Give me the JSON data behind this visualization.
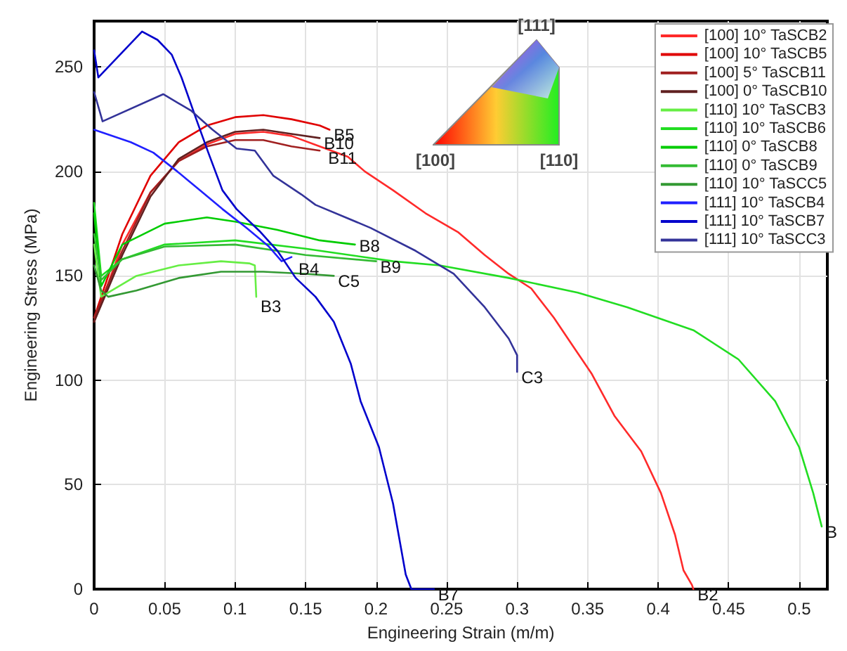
{
  "chart_data": {
    "type": "line",
    "xlabel": "Engineering Strain (m/m)",
    "ylabel": "Engineering Stress (MPa)",
    "xlim": [
      0,
      0.52
    ],
    "xticks": [
      0,
      0.05,
      0.1,
      0.15,
      0.2,
      0.25,
      0.3,
      0.35,
      0.4,
      0.45,
      0.5
    ],
    "ylim": [
      0,
      272
    ],
    "yticks": [
      0,
      50,
      100,
      150,
      200,
      250
    ],
    "grid": true,
    "legend": "top right",
    "marker": "none",
    "line_style": "solid",
    "series": [
      {
        "name": "[100] 10° TaSCB2",
        "color": "#ff2a2a",
        "x": [
          0,
          0.02,
          0.04,
          0.06,
          0.08,
          0.1,
          0.12,
          0.14,
          0.16,
          0.18,
          0.192,
          0.212,
          0.235,
          0.258,
          0.277,
          0.294,
          0.31,
          0.326,
          0.339,
          0.353,
          0.369,
          0.388,
          0.402,
          0.412,
          0.418,
          0.424,
          0.425
        ],
        "values": [
          128,
          165,
          190,
          205,
          213,
          218,
          219,
          217,
          212,
          207,
          200,
          191,
          180,
          171,
          160,
          151,
          144,
          130,
          117,
          103,
          83,
          66,
          46,
          26,
          9,
          2,
          0
        ]
      },
      {
        "name": "[100] 10° TaSCB5",
        "color": "#e00000",
        "x": [
          0,
          0.02,
          0.04,
          0.06,
          0.08,
          0.1,
          0.12,
          0.14,
          0.16,
          0.167
        ],
        "values": [
          130,
          170,
          198,
          214,
          222,
          226,
          227,
          225,
          222,
          220
        ]
      },
      {
        "name": "[100] 5° TaSCB11",
        "color": "#a02020",
        "x": [
          0,
          0.02,
          0.04,
          0.06,
          0.08,
          0.1,
          0.12,
          0.14,
          0.16
        ],
        "values": [
          130,
          162,
          190,
          205,
          212,
          215,
          215,
          212,
          210
        ]
      },
      {
        "name": "[100] 0° TaSCB10",
        "color": "#602020",
        "x": [
          0,
          0.02,
          0.04,
          0.06,
          0.08,
          0.1,
          0.12,
          0.14,
          0.16
        ],
        "values": [
          128,
          160,
          188,
          206,
          214,
          219,
          220,
          218,
          216
        ]
      },
      {
        "name": "[110] 10° TaSCB3",
        "color": "#66ee44",
        "x": [
          0,
          0.005,
          0.03,
          0.06,
          0.09,
          0.11,
          0.114,
          0.115
        ],
        "values": [
          165,
          140,
          150,
          155,
          157,
          156,
          155,
          140
        ]
      },
      {
        "name": "[110] 10° TaSCB6",
        "color": "#22dd22",
        "x": [
          0,
          0.005,
          0.02,
          0.05,
          0.1,
          0.15,
          0.212,
          0.245,
          0.294,
          0.343,
          0.378,
          0.425,
          0.457,
          0.483,
          0.5,
          0.51,
          0.516
        ],
        "values": [
          185,
          150,
          158,
          165,
          167,
          163,
          157,
          155,
          149,
          142,
          135,
          124,
          110,
          90,
          68,
          46,
          30
        ]
      },
      {
        "name": "[110] 0° TaSCB8",
        "color": "#00cc00",
        "x": [
          0,
          0.005,
          0.02,
          0.05,
          0.08,
          0.1,
          0.13,
          0.16,
          0.185
        ],
        "values": [
          180,
          145,
          165,
          175,
          178,
          176,
          172,
          167,
          165
        ]
      },
      {
        "name": "[110] 0° TaSCB9",
        "color": "#33bb33",
        "x": [
          0,
          0.005,
          0.02,
          0.05,
          0.1,
          0.15,
          0.2
        ],
        "values": [
          170,
          148,
          158,
          164,
          165,
          160,
          157
        ]
      },
      {
        "name": "[110] 10° TaSCC5",
        "color": "#339933",
        "x": [
          0,
          0.005,
          0.01,
          0.03,
          0.06,
          0.09,
          0.12,
          0.15,
          0.17
        ],
        "values": [
          155,
          143,
          140,
          143,
          149,
          152,
          152,
          151,
          150
        ]
      },
      {
        "name": "[111] 10° TaSCB4",
        "color": "#2020ff",
        "x": [
          0,
          0.026,
          0.042,
          0.059,
          0.075,
          0.091,
          0.108,
          0.124,
          0.133,
          0.14
        ],
        "values": [
          220,
          214,
          209,
          200,
          191,
          182,
          173,
          164,
          157,
          159
        ]
      },
      {
        "name": "[111] 10° TaSCB7",
        "color": "#0000cc",
        "x": [
          0,
          0.003,
          0.034,
          0.045,
          0.055,
          0.062,
          0.073,
          0.081,
          0.091,
          0.101,
          0.118,
          0.13,
          0.143,
          0.157,
          0.17,
          0.182,
          0.189,
          0.202,
          0.212,
          0.221,
          0.225,
          0.241
        ],
        "values": [
          258,
          245,
          267,
          263,
          256,
          245,
          224,
          209,
          191,
          182,
          171,
          162,
          149,
          140,
          128,
          108,
          90,
          68,
          41,
          7,
          0,
          0
        ]
      },
      {
        "name": "[111] 10° TaSCC3",
        "color": "#333399",
        "x": [
          0,
          0.006,
          0.049,
          0.069,
          0.084,
          0.101,
          0.114,
          0.127,
          0.147,
          0.157,
          0.196,
          0.228,
          0.255,
          0.277,
          0.294,
          0.3,
          0.3
        ],
        "values": [
          238,
          224,
          237,
          229,
          220,
          211,
          210,
          198,
          189,
          184,
          173,
          162,
          151,
          135,
          120,
          112,
          104
        ]
      }
    ],
    "annotations": [
      "[111]",
      "[100]",
      "[110]",
      {
        "text": "B5",
        "x": 0.167,
        "y": 220
      },
      {
        "text": "B10",
        "x": 0.16,
        "y": 216
      },
      {
        "text": "B11",
        "x": 0.163,
        "y": 209
      },
      {
        "text": "B3",
        "x": 0.115,
        "y": 138
      },
      {
        "text": "B4",
        "x": 0.142,
        "y": 156
      },
      {
        "text": "B8",
        "x": 0.185,
        "y": 167
      },
      {
        "text": "B9",
        "x": 0.2,
        "y": 157
      },
      {
        "text": "C5",
        "x": 0.17,
        "y": 150
      },
      {
        "text": "C3",
        "x": 0.3,
        "y": 104
      },
      {
        "text": "B7",
        "x": 0.241,
        "y": 0
      },
      {
        "text": "B2",
        "x": 0.425,
        "y": 0
      },
      {
        "text": "B",
        "x": 0.516,
        "y": 30
      }
    ]
  }
}
